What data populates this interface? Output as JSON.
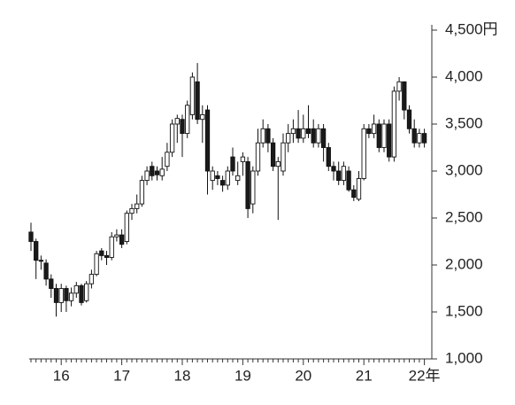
{
  "chart_data": {
    "type": "candlestick",
    "categories": [
      null,
      null,
      null,
      null,
      null,
      null,
      "16",
      null,
      null,
      null,
      null,
      null,
      null,
      null,
      null,
      null,
      null,
      null,
      "17",
      null,
      null,
      null,
      null,
      null,
      null,
      null,
      null,
      null,
      null,
      null,
      "18",
      null,
      null,
      null,
      null,
      null,
      null,
      null,
      null,
      null,
      null,
      null,
      "19",
      null,
      null,
      null,
      null,
      null,
      null,
      null,
      null,
      null,
      null,
      null,
      "20",
      null,
      null,
      null,
      null,
      null,
      null,
      null,
      null,
      null,
      null,
      null,
      "21",
      null,
      null,
      null,
      null,
      null,
      null,
      null,
      null,
      null,
      null,
      null,
      "22年"
    ],
    "open": [
      2350,
      2250,
      2050,
      2020,
      1850,
      1750,
      1600,
      1750,
      1620,
      1700,
      1780,
      1620,
      1800,
      1900,
      2150,
      2100,
      2080,
      2300,
      2320,
      2250,
      2550,
      2600,
      2650,
      2900,
      3050,
      3000,
      2950,
      3050,
      3200,
      3500,
      3550,
      3400,
      3600,
      3950,
      3550,
      3650,
      2900,
      2950,
      2900,
      2850,
      3150,
      2900,
      3100,
      3100,
      2650,
      3000,
      3300,
      3450,
      3300,
      3050,
      3000,
      3300,
      3400,
      3450,
      3350,
      3450,
      3450,
      3300,
      3450,
      3250,
      3050,
      3000,
      2900,
      3000,
      2800,
      2700,
      2920,
      3450,
      3400,
      3500,
      3250,
      3500,
      3150,
      3850,
      3950,
      3650,
      3450,
      3300,
      3400
    ],
    "high": [
      2450,
      2280,
      2100,
      2060,
      1900,
      1800,
      1800,
      1780,
      1760,
      1820,
      1800,
      1830,
      1950,
      2150,
      2180,
      2150,
      2350,
      2380,
      2380,
      2580,
      2650,
      2750,
      2950,
      3050,
      3100,
      3050,
      3150,
      3300,
      3550,
      3600,
      3600,
      3750,
      4050,
      4150,
      3700,
      3700,
      3050,
      3000,
      2950,
      3050,
      3250,
      3100,
      3200,
      3150,
      3050,
      3450,
      3550,
      3500,
      3350,
      3150,
      3400,
      3500,
      3550,
      3650,
      3600,
      3700,
      3550,
      3500,
      3500,
      3300,
      3100,
      3100,
      3100,
      3050,
      2850,
      3000,
      3500,
      3500,
      3600,
      3550,
      3550,
      3550,
      3900,
      4000,
      3950,
      3700,
      3550,
      3450,
      3450
    ],
    "low": [
      2150,
      1850,
      1950,
      1780,
      1650,
      1450,
      1500,
      1500,
      1560,
      1650,
      1570,
      1600,
      1750,
      1880,
      2050,
      2000,
      2050,
      2250,
      2180,
      2220,
      2480,
      2550,
      2620,
      2850,
      2900,
      2900,
      2900,
      3000,
      3150,
      3300,
      3150,
      3350,
      3550,
      3500,
      3300,
      2750,
      2800,
      2850,
      2780,
      2800,
      2950,
      2850,
      2950,
      2500,
      2550,
      2950,
      3250,
      3200,
      3000,
      2480,
      2950,
      3200,
      3300,
      3300,
      3300,
      3350,
      3250,
      3250,
      3100,
      3000,
      2900,
      2850,
      2850,
      2780,
      2680,
      2680,
      2900,
      3350,
      3350,
      3200,
      3200,
      3100,
      3100,
      3750,
      3550,
      3400,
      3250,
      3250,
      3250
    ],
    "close": [
      2250,
      2050,
      2040,
      1850,
      1750,
      1600,
      1750,
      1620,
      1700,
      1780,
      1600,
      1800,
      1900,
      2120,
      2100,
      2080,
      2300,
      2320,
      2220,
      2550,
      2600,
      2650,
      2900,
      3000,
      2950,
      2960,
      3020,
      3200,
      3500,
      3560,
      3400,
      3700,
      4000,
      3550,
      3600,
      3000,
      3000,
      2920,
      2850,
      3000,
      3000,
      2950,
      3150,
      2600,
      3000,
      3300,
      3450,
      3300,
      3050,
      3100,
      3300,
      3400,
      3450,
      3350,
      3450,
      3400,
      3300,
      3450,
      3250,
      3050,
      3000,
      2900,
      3050,
      2800,
      2720,
      2920,
      3450,
      3400,
      3500,
      3250,
      3500,
      3150,
      3850,
      3950,
      3650,
      3450,
      3300,
      3400,
      3300
    ],
    "ylim": [
      1000,
      4500
    ],
    "yticks": [
      {
        "value": 1000,
        "label": "1,000"
      },
      {
        "value": 1500,
        "label": "1,500"
      },
      {
        "value": 2000,
        "label": "2,000"
      },
      {
        "value": 2500,
        "label": "2,500"
      },
      {
        "value": 3000,
        "label": "3,000"
      },
      {
        "value": 3500,
        "label": "3,500"
      },
      {
        "value": 4000,
        "label": "4,000"
      },
      {
        "value": 4500,
        "label": "4,500円"
      }
    ],
    "up_color": "#ffffff",
    "down_color": "#1a1a1a"
  }
}
